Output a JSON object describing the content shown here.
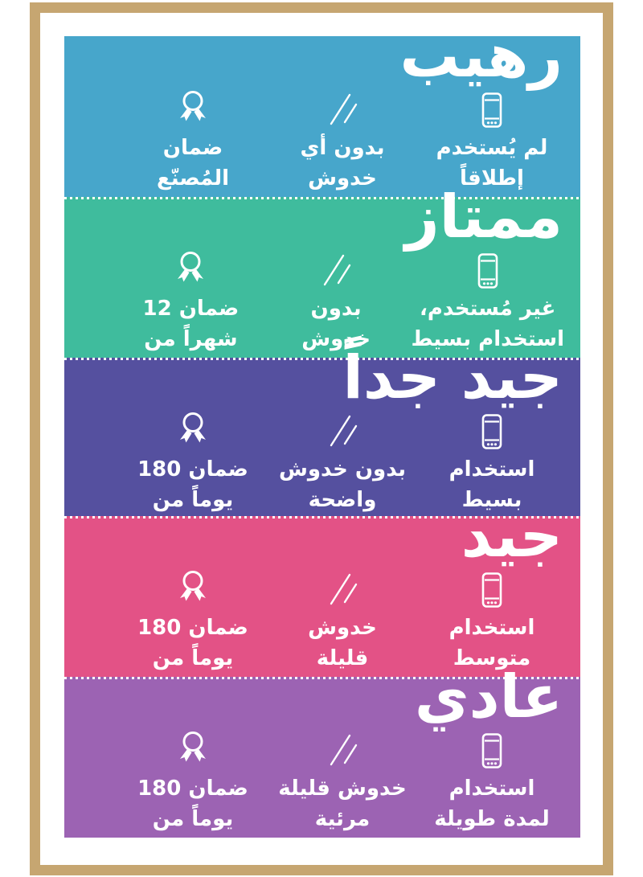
{
  "infographic": {
    "direction": "rtl",
    "frame_color": "#C6A671",
    "background_color": "#FFFFFF",
    "text_color": "#FFFFFF",
    "bands": [
      {
        "title": "رهيب",
        "color": "#47A6CB",
        "items": [
          {
            "icon": "phone-icon",
            "lines": [
              "لم يُستخدم",
              "إطلاقاً"
            ]
          },
          {
            "icon": "scratches-icon",
            "lines": [
              "بدون أي",
              "خدوش"
            ]
          },
          {
            "icon": "warranty-medal-icon",
            "lines": [
              "ضمان",
              "المُصنّع"
            ]
          }
        ]
      },
      {
        "title": "ممتاز",
        "color": "#3FBC9D",
        "items": [
          {
            "icon": "phone-icon",
            "lines": [
              "غير مُستخدم،",
              "استخدام بسيط"
            ]
          },
          {
            "icon": "scratches-icon",
            "lines": [
              "بدون",
              "خدوش"
            ]
          },
          {
            "icon": "warranty-medal-icon",
            "lines": [
              "ضمان 12",
              "شهراً من"
            ]
          }
        ]
      },
      {
        "title": "جيد جداً",
        "color": "#55509F",
        "items": [
          {
            "icon": "phone-icon",
            "lines": [
              "استخدام",
              "بسيط"
            ]
          },
          {
            "icon": "scratches-icon",
            "lines": [
              "بدون خدوش",
              "واضحة"
            ]
          },
          {
            "icon": "warranty-medal-icon",
            "lines": [
              "ضمان 180",
              "يوماً من"
            ]
          }
        ]
      },
      {
        "title": "جيد",
        "color": "#E35286",
        "items": [
          {
            "icon": "phone-icon",
            "lines": [
              "استخدام",
              "متوسط"
            ]
          },
          {
            "icon": "scratches-icon",
            "lines": [
              "خدوش",
              "قليلة"
            ]
          },
          {
            "icon": "warranty-medal-icon",
            "lines": [
              "ضمان 180",
              "يوماً من"
            ]
          }
        ]
      },
      {
        "title": "عادي",
        "color": "#9C63B3",
        "items": [
          {
            "icon": "phone-icon",
            "lines": [
              "استخدام",
              "لمدة طويلة"
            ]
          },
          {
            "icon": "scratches-icon",
            "lines": [
              "خدوش قليلة",
              "مرئية"
            ]
          },
          {
            "icon": "warranty-medal-icon",
            "lines": [
              "ضمان 180",
              "يوماً من"
            ]
          }
        ]
      }
    ]
  }
}
